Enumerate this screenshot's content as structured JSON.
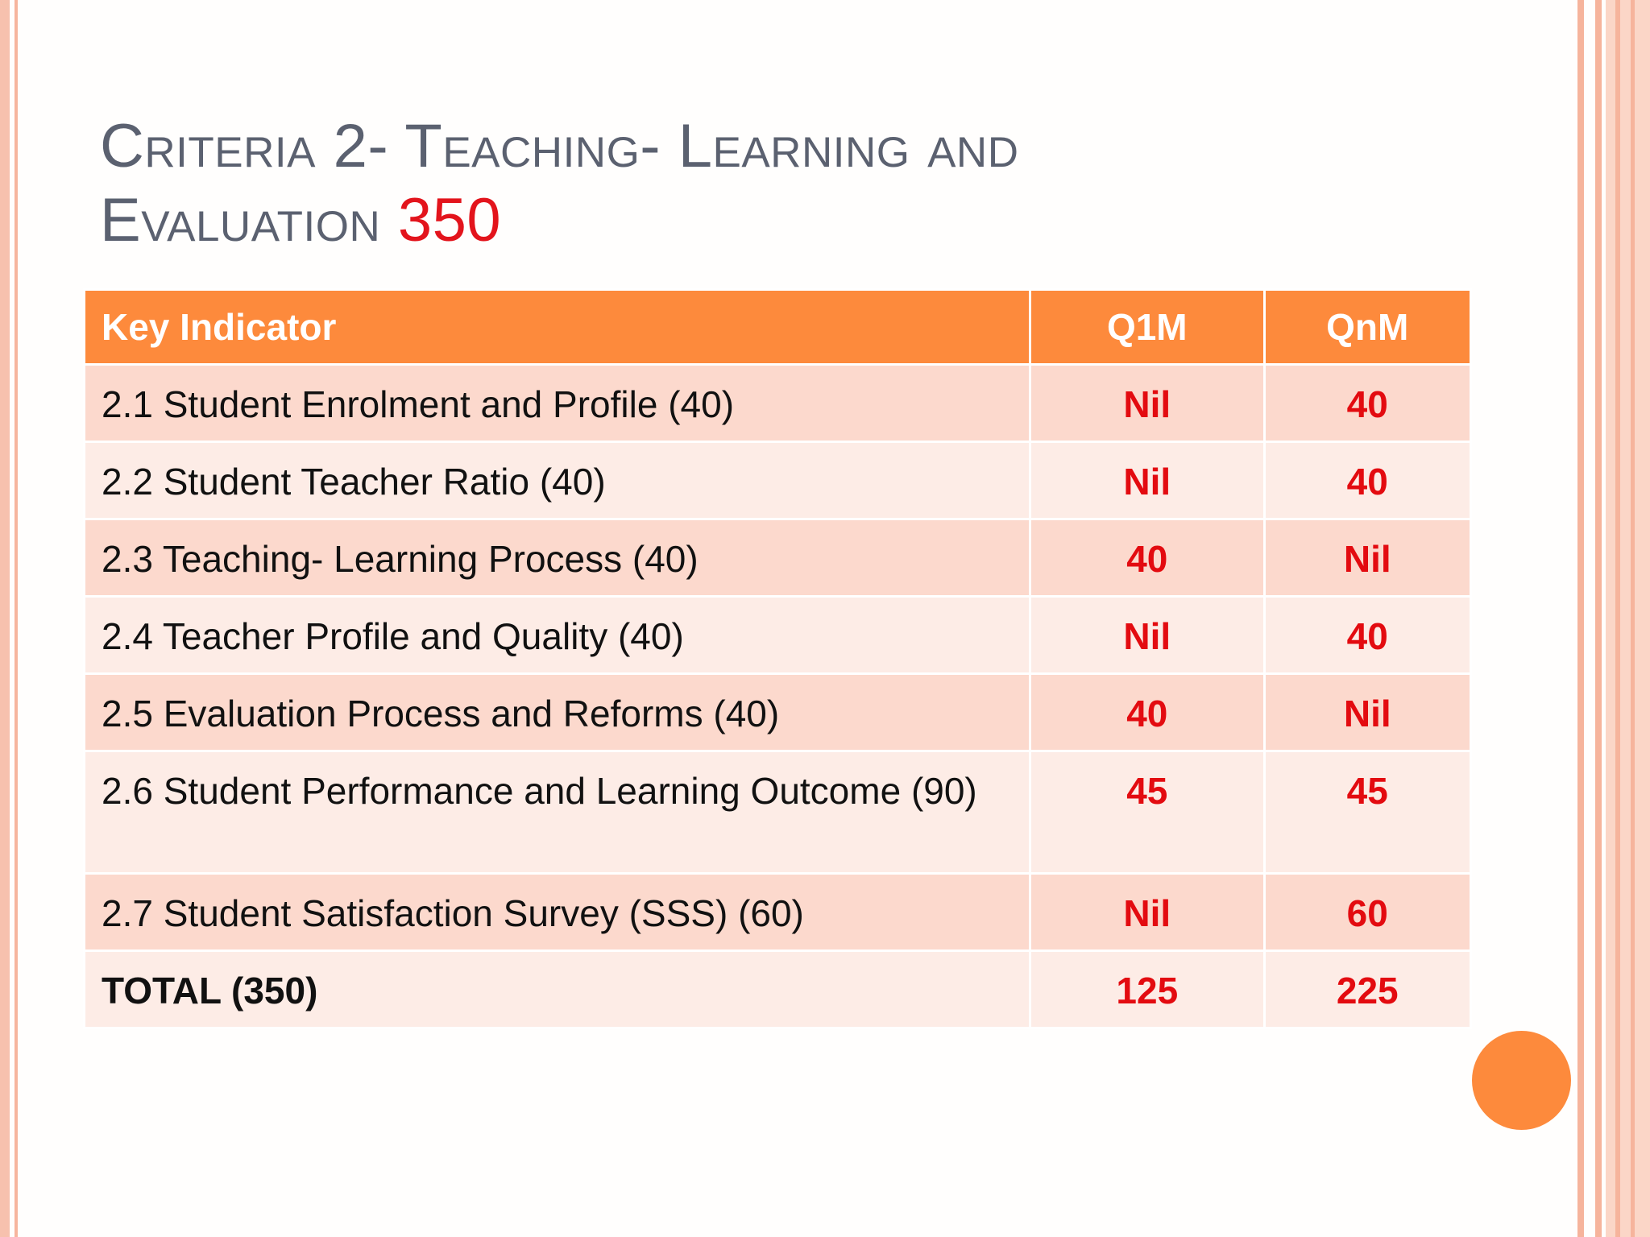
{
  "title": {
    "text": "Criteria 2- Teaching- Learning and",
    "line2": "Evaluation",
    "points": "350"
  },
  "table": {
    "headers": [
      "Key Indicator",
      "Q1M",
      "QnM"
    ],
    "rows": [
      {
        "label": "2.1 Student Enrolment and Profile (40)",
        "q1m": "Nil",
        "qnm": "40"
      },
      {
        "label": "2.2 Student Teacher Ratio  (40)",
        "q1m": "Nil",
        "qnm": "40"
      },
      {
        "label": "2.3 Teaching- Learning Process (40)",
        "q1m": "40",
        "qnm": "Nil"
      },
      {
        "label": "2.4 Teacher Profile and Quality (40)",
        "q1m": "Nil",
        "qnm": "40"
      },
      {
        "label": "2.5 Evaluation Process and Reforms (40)",
        "q1m": "40",
        "qnm": "Nil"
      },
      {
        "label": "2.6 Student Performance and Learning Outcome (90)",
        "q1m": "45",
        "qnm": "45"
      },
      {
        "label": "2.7 Student Satisfaction Survey (SSS) (60)",
        "q1m": "Nil",
        "qnm": "60"
      },
      {
        "label": "TOTAL (350)",
        "q1m": "125",
        "qnm": "225"
      }
    ]
  },
  "colors": {
    "header_bg": "#fd8a3c",
    "row_odd": "#fcd9cd",
    "row_even": "#fdece6",
    "value_red": "#e30b10",
    "title_gray": "#5b6170"
  }
}
